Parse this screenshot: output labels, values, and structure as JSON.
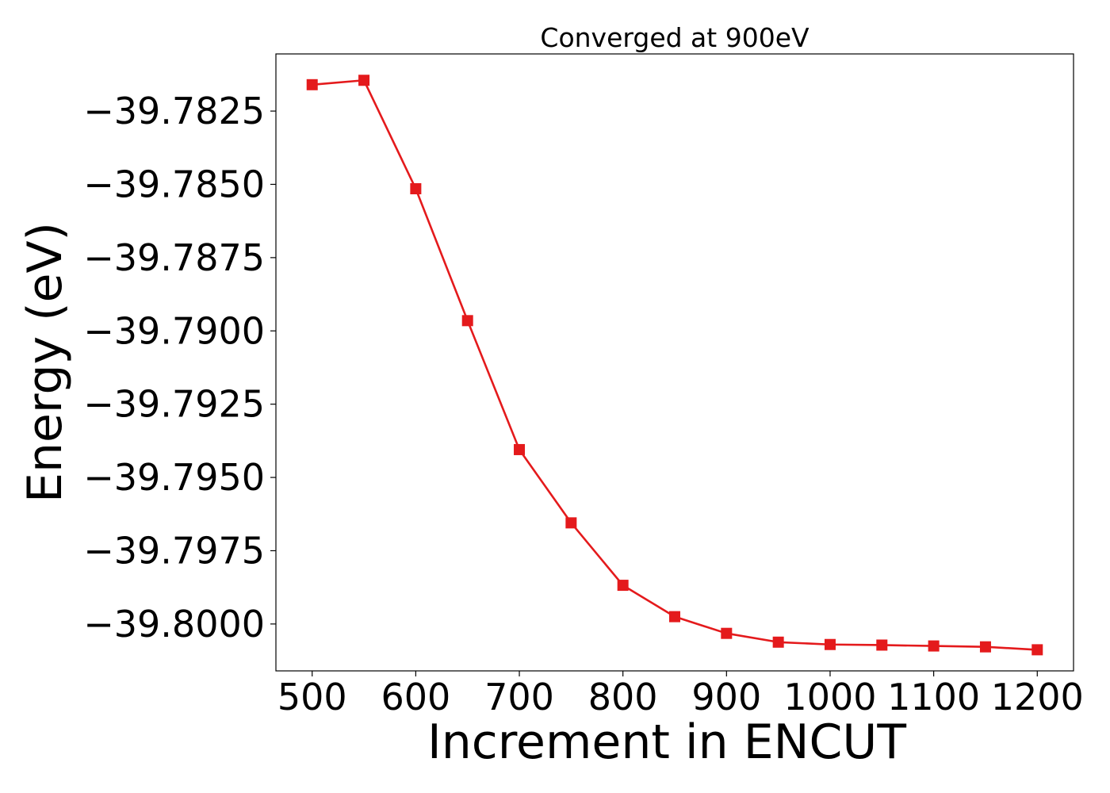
{
  "chart_data": {
    "type": "line",
    "title": "Converged at 900eV",
    "xlabel": "Increment in ENCUT",
    "ylabel": "Energy (eV)",
    "x": [
      500,
      550,
      600,
      650,
      700,
      750,
      800,
      850,
      900,
      950,
      1000,
      1050,
      1100,
      1150,
      1200
    ],
    "series": [
      {
        "color": "#e41a1c",
        "marker": "square",
        "values": [
          -39.7816,
          -39.78145,
          -39.78515,
          -39.78965,
          -39.79405,
          -39.79655,
          -39.79868,
          -39.79975,
          -39.80032,
          -39.80062,
          -39.8007,
          -39.80072,
          -39.80075,
          -39.80078,
          -39.80088
        ]
      }
    ],
    "xlim": [
      465,
      1235
    ],
    "ylim": [
      -39.8016,
      -39.78055
    ],
    "xticks": [
      500,
      600,
      700,
      800,
      900,
      1000,
      1100,
      1200
    ],
    "xtick_labels": [
      "500",
      "600",
      "700",
      "800",
      "900",
      "1000",
      "1100",
      "1200"
    ],
    "yticks": [
      -39.7825,
      -39.785,
      -39.7875,
      -39.79,
      -39.7925,
      -39.795,
      -39.7975,
      -39.8
    ],
    "ytick_labels": [
      "−39.7825",
      "−39.7850",
      "−39.7875",
      "−39.7900",
      "−39.7925",
      "−39.7950",
      "−39.7975",
      "−39.8000"
    ],
    "grid": false,
    "legend": "none"
  }
}
